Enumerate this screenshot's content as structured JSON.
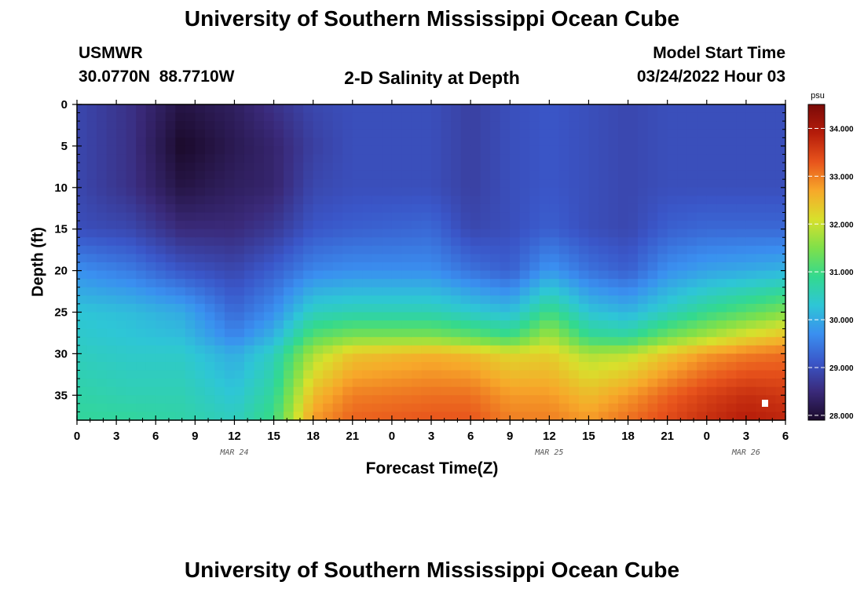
{
  "title": "University of Southern Mississippi Ocean Cube",
  "footer_title": "University of Southern Mississippi Ocean Cube",
  "station": {
    "name": "USMWR",
    "coords": "30.0770N  88.7710W"
  },
  "model": {
    "label": "Model Start Time",
    "time": "03/24/2022 Hour 03"
  },
  "subtitle": "2-D Salinity at Depth",
  "chart_data": {
    "type": "heatmap",
    "title": "2-D Salinity at Depth",
    "xlabel": "Forecast Time(Z)",
    "ylabel": "Depth (ft)",
    "x_tick_labels": [
      "0",
      "3",
      "6",
      "9",
      "12",
      "15",
      "18",
      "21",
      "0",
      "3",
      "6",
      "9",
      "12",
      "15",
      "18",
      "21",
      "0",
      "3",
      "6"
    ],
    "x_hours": [
      0,
      3,
      6,
      9,
      12,
      15,
      18,
      21,
      24,
      27,
      30,
      33,
      36,
      39,
      42,
      45,
      48,
      51,
      54
    ],
    "x_range_hours": [
      0,
      54
    ],
    "date_labels": [
      {
        "text": "MAR 24",
        "hour": 12
      },
      {
        "text": "MAR 25",
        "hour": 36
      },
      {
        "text": "MAR 26",
        "hour": 51
      }
    ],
    "y_ticks": [
      0,
      5,
      10,
      15,
      20,
      25,
      30,
      35
    ],
    "y_range": [
      0,
      38
    ],
    "colorbar": {
      "unit": "psu",
      "range": [
        27.9,
        34.5
      ],
      "ticks": [
        "28.000",
        "29.000",
        "30.000",
        "31.000",
        "32.000",
        "33.000",
        "34.000"
      ],
      "tick_values": [
        28,
        29,
        30,
        31,
        32,
        33,
        34
      ]
    },
    "depth_levels_ft": [
      0,
      5,
      10,
      15,
      20,
      25,
      28,
      30,
      35,
      38
    ],
    "salinity_keyframes": [
      {
        "hour": 0,
        "profile": [
          28.9,
          28.9,
          28.9,
          29.0,
          29.7,
          30.3,
          30.4,
          30.5,
          30.7,
          30.8
        ]
      },
      {
        "hour": 4,
        "profile": [
          28.6,
          28.6,
          28.6,
          28.9,
          29.5,
          30.2,
          30.3,
          30.4,
          30.6,
          30.8
        ]
      },
      {
        "hour": 8,
        "profile": [
          28.1,
          27.9,
          28.1,
          28.5,
          29.1,
          30.0,
          30.2,
          30.4,
          30.6,
          30.7
        ]
      },
      {
        "hour": 12,
        "profile": [
          28.3,
          28.2,
          28.3,
          28.5,
          28.9,
          29.3,
          29.6,
          30.0,
          30.3,
          30.5
        ]
      },
      {
        "hour": 15,
        "profile": [
          28.6,
          28.4,
          28.4,
          28.7,
          29.2,
          29.7,
          30.1,
          30.5,
          30.8,
          31.0
        ]
      },
      {
        "hour": 18,
        "profile": [
          28.9,
          28.8,
          28.9,
          29.1,
          29.6,
          30.5,
          31.2,
          31.8,
          32.5,
          32.8
        ]
      },
      {
        "hour": 21,
        "profile": [
          29.0,
          29.0,
          29.0,
          29.2,
          29.7,
          30.6,
          31.5,
          32.4,
          33.0,
          33.2
        ]
      },
      {
        "hour": 27,
        "profile": [
          29.0,
          29.0,
          29.0,
          29.3,
          29.7,
          30.6,
          31.5,
          32.6,
          33.1,
          33.3
        ]
      },
      {
        "hour": 30,
        "profile": [
          28.8,
          28.8,
          28.8,
          28.9,
          29.4,
          30.4,
          31.3,
          32.5,
          33.1,
          33.3
        ]
      },
      {
        "hour": 33,
        "profile": [
          29.0,
          29.0,
          29.0,
          29.0,
          29.2,
          30.2,
          31.0,
          32.2,
          32.8,
          33.0
        ]
      },
      {
        "hour": 36,
        "profile": [
          29.1,
          29.1,
          29.1,
          29.2,
          29.8,
          31.0,
          31.8,
          32.3,
          32.8,
          33.0
        ]
      },
      {
        "hour": 39,
        "profile": [
          29.0,
          29.0,
          29.0,
          29.0,
          29.4,
          30.3,
          30.9,
          31.8,
          32.5,
          32.8
        ]
      },
      {
        "hour": 42,
        "profile": [
          28.9,
          28.9,
          28.9,
          28.9,
          29.2,
          30.1,
          30.8,
          31.9,
          32.8,
          33.1
        ]
      },
      {
        "hour": 45,
        "profile": [
          29.0,
          29.0,
          29.0,
          29.2,
          29.7,
          30.5,
          31.4,
          32.4,
          33.2,
          33.4
        ]
      },
      {
        "hour": 48,
        "profile": [
          29.0,
          29.0,
          29.0,
          29.3,
          29.9,
          30.9,
          31.8,
          32.8,
          33.5,
          33.7
        ]
      },
      {
        "hour": 51,
        "profile": [
          29.0,
          29.0,
          29.0,
          29.3,
          30.0,
          31.2,
          32.2,
          33.0,
          33.7,
          33.9
        ]
      },
      {
        "hour": 54,
        "profile": [
          29.0,
          29.0,
          29.0,
          29.3,
          30.1,
          31.5,
          32.5,
          33.1,
          33.6,
          33.8
        ]
      }
    ],
    "palette": [
      "#1b0a2a",
      "#3a2a7a",
      "#3a56c8",
      "#3a8ff0",
      "#2ec6d6",
      "#33d98f",
      "#7fe04a",
      "#d8e02c",
      "#f7a82a",
      "#e8541c",
      "#b51c0a",
      "#7a0a08"
    ]
  }
}
